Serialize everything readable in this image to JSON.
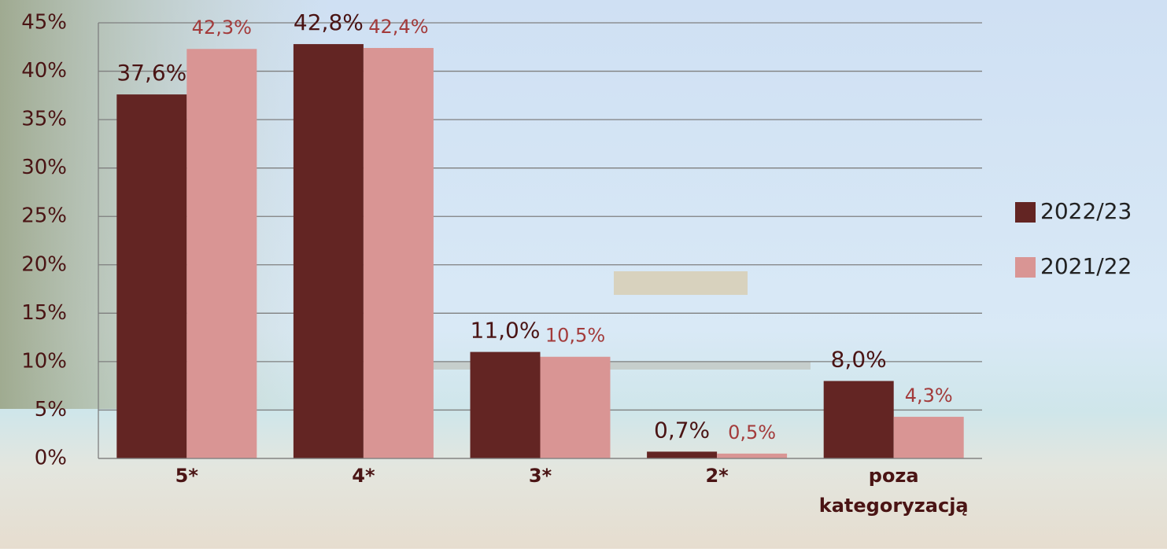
{
  "chart_data": {
    "type": "bar",
    "categories": [
      "5*",
      "4*",
      "3*",
      "2*",
      "poza kategoryzacją"
    ],
    "series": [
      {
        "name": "2022/23",
        "color": "#632523",
        "values": [
          37.6,
          42.8,
          11.0,
          0.7,
          8.0
        ],
        "value_labels": [
          "37,6%",
          "42,8%",
          "11,0%",
          "0,7%",
          "8,0%"
        ]
      },
      {
        "name": "2021/22",
        "color": "#d99594",
        "values": [
          42.3,
          42.4,
          10.5,
          0.5,
          4.3
        ],
        "value_labels": [
          "42,3%",
          "42,4%",
          "10,5%",
          "0,5%",
          "4,3%"
        ]
      }
    ],
    "ylim": [
      0,
      45
    ],
    "yticks": [
      {
        "value": 0,
        "label": "0%"
      },
      {
        "value": 5,
        "label": "5%"
      },
      {
        "value": 10,
        "label": "10%"
      },
      {
        "value": 15,
        "label": "15%"
      },
      {
        "value": 20,
        "label": "20%"
      },
      {
        "value": 25,
        "label": "25%"
      },
      {
        "value": 30,
        "label": "30%"
      },
      {
        "value": 35,
        "label": "35%"
      },
      {
        "value": 40,
        "label": "40%"
      },
      {
        "value": 45,
        "label": "45%"
      }
    ],
    "grid": true,
    "legend": "right"
  }
}
